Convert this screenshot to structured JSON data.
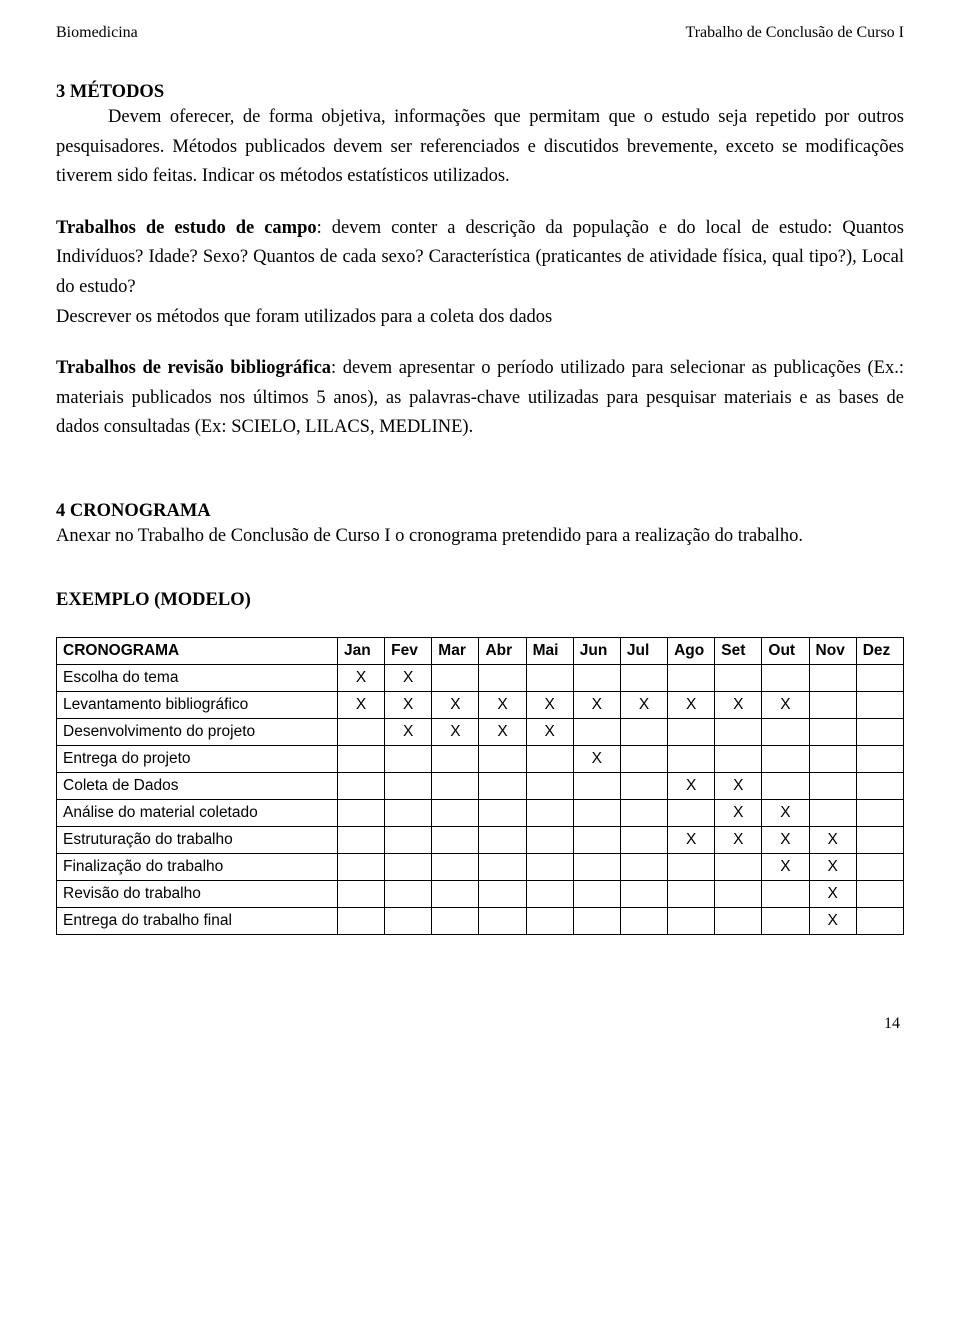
{
  "header": {
    "left": "Biomedicina",
    "right": "Trabalho de Conclusão de Curso I"
  },
  "section3": {
    "title": "3 MÉTODOS",
    "para1": "Devem oferecer, de forma objetiva, informações que permitam que o estudo seja repetido por outros pesquisadores. Métodos publicados devem ser referenciados e discutidos brevemente, exceto se modificações tiverem sido feitas. Indicar os métodos estatísticos utilizados.",
    "campo_label": "Trabalhos de estudo de campo",
    "campo_text": ": devem conter a descrição da população e do local de estudo: Quantos Indivíduos? Idade? Sexo? Quantos de cada sexo? Característica (praticantes de atividade física, qual tipo?), Local do estudo?",
    "campo_line2": "Descrever os métodos que foram utilizados para a coleta dos dados",
    "revisao_label": "Trabalhos de revisão bibliográfica",
    "revisao_text": ": devem apresentar o período utilizado para selecionar as publicações (Ex.: materiais publicados nos últimos 5 anos), as palavras-chave utilizadas para pesquisar materiais e as bases de dados consultadas (Ex: SCIELO, LILACS, MEDLINE)."
  },
  "section4": {
    "title": "4 CRONOGRAMA",
    "para": "Anexar no Trabalho de Conclusão de Curso I o cronograma pretendido para a realização do trabalho."
  },
  "exemplo": {
    "title": "EXEMPLO (MODELO)"
  },
  "table": {
    "header_activity": "CRONOGRAMA",
    "months": [
      "Jan",
      "Fev",
      "Mar",
      "Abr",
      "Mai",
      "Jun",
      "Jul",
      "Ago",
      "Set",
      "Out",
      "Nov",
      "Dez"
    ],
    "rows": [
      {
        "activity": "Escolha do tema",
        "marks": [
          1,
          1,
          0,
          0,
          0,
          0,
          0,
          0,
          0,
          0,
          0,
          0
        ]
      },
      {
        "activity": "Levantamento bibliográfico",
        "marks": [
          1,
          1,
          1,
          1,
          1,
          1,
          1,
          1,
          1,
          1,
          0,
          0
        ]
      },
      {
        "activity": "Desenvolvimento do projeto",
        "marks": [
          0,
          1,
          1,
          1,
          1,
          0,
          0,
          0,
          0,
          0,
          0,
          0
        ]
      },
      {
        "activity": "Entrega do projeto",
        "marks": [
          0,
          0,
          0,
          0,
          0,
          1,
          0,
          0,
          0,
          0,
          0,
          0
        ]
      },
      {
        "activity": "Coleta de Dados",
        "marks": [
          0,
          0,
          0,
          0,
          0,
          0,
          0,
          1,
          1,
          0,
          0,
          0
        ]
      },
      {
        "activity": "Análise do material coletado",
        "marks": [
          0,
          0,
          0,
          0,
          0,
          0,
          0,
          0,
          1,
          1,
          0,
          0
        ]
      },
      {
        "activity": "Estruturação do trabalho",
        "marks": [
          0,
          0,
          0,
          0,
          0,
          0,
          0,
          1,
          1,
          1,
          1,
          0
        ]
      },
      {
        "activity": "Finalização do trabalho",
        "marks": [
          0,
          0,
          0,
          0,
          0,
          0,
          0,
          0,
          0,
          1,
          1,
          0
        ]
      },
      {
        "activity": "Revisão do trabalho",
        "marks": [
          0,
          0,
          0,
          0,
          0,
          0,
          0,
          0,
          0,
          0,
          1,
          0
        ]
      },
      {
        "activity": "Entrega do trabalho final",
        "marks": [
          0,
          0,
          0,
          0,
          0,
          0,
          0,
          0,
          0,
          0,
          1,
          0
        ]
      }
    ],
    "mark_char": "X"
  },
  "page_number": "14",
  "styling": {
    "body_fontsize_pt": 14,
    "header_fontsize_pt": 12,
    "table_font": "Arial",
    "body_font": "Times New Roman",
    "text_color": "#000000",
    "background_color": "#ffffff",
    "border_color": "#000000"
  }
}
